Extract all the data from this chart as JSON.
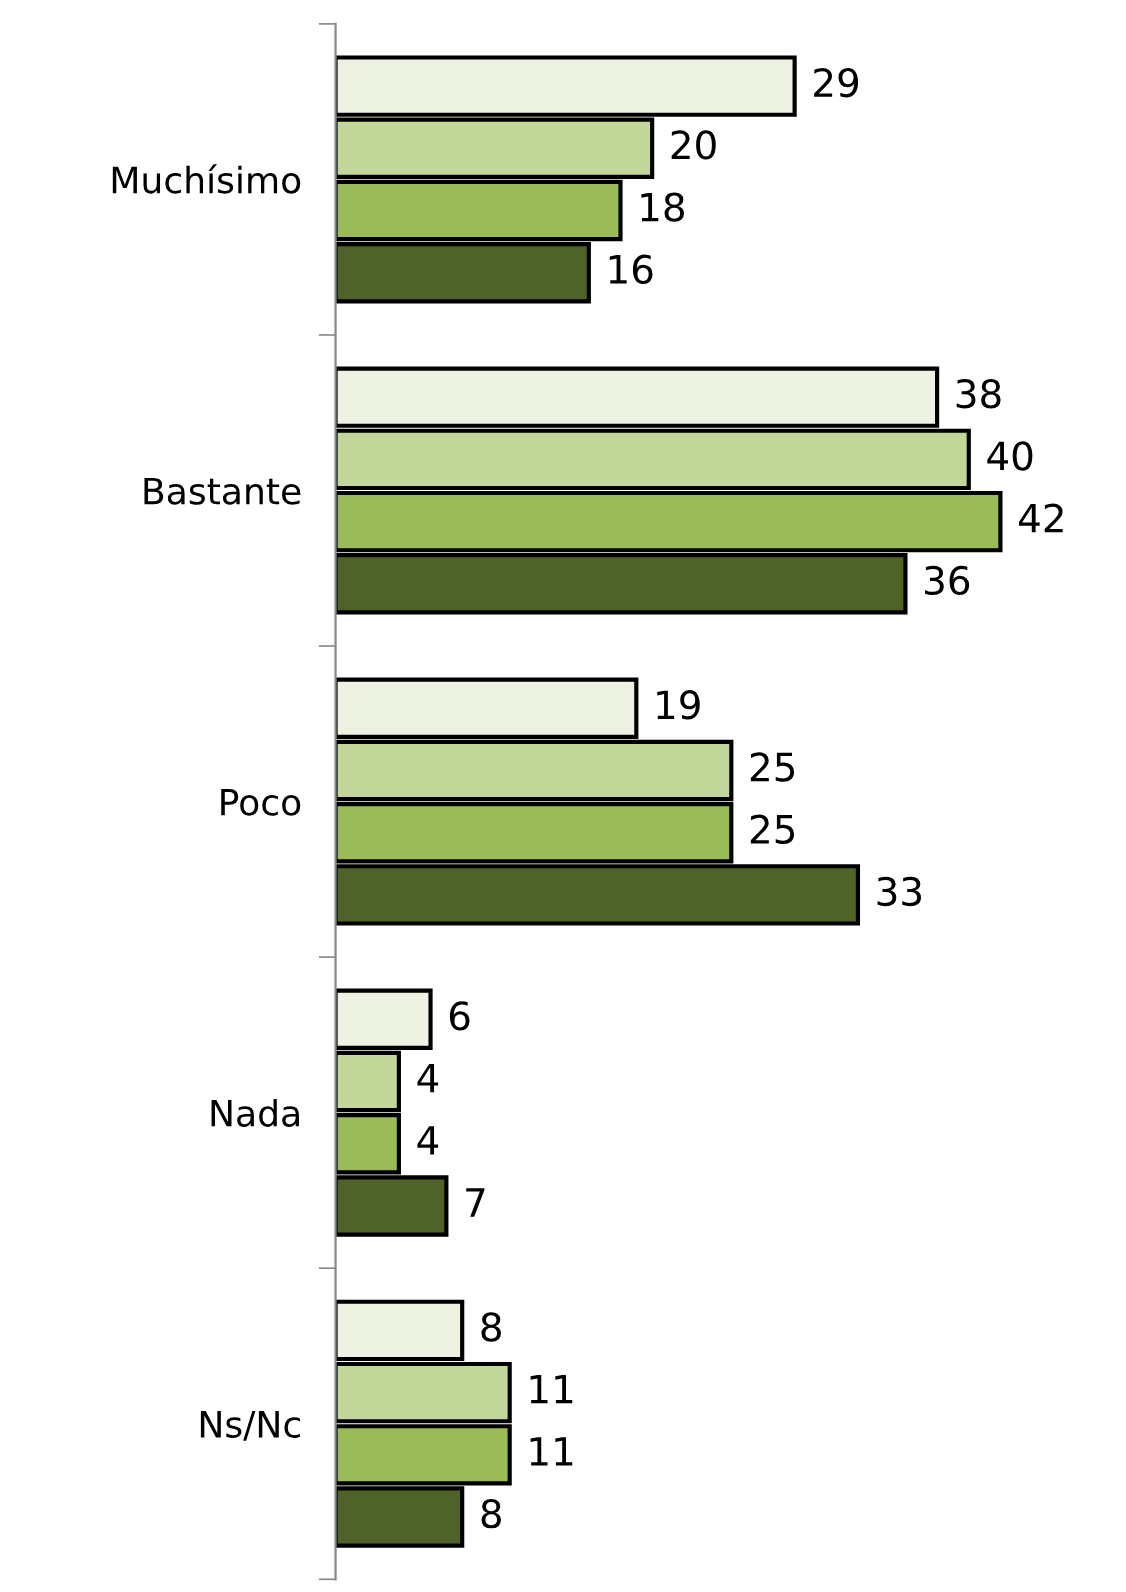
{
  "chart_data": {
    "type": "bar",
    "orientation": "horizontal",
    "categories": [
      "Muchísimo",
      "Bastante",
      "Poco",
      "Nada",
      "Ns/Nc"
    ],
    "series": [
      {
        "color": "#eef2e2",
        "values": [
          29,
          38,
          19,
          6,
          8
        ]
      },
      {
        "color": "#c4d79b",
        "values": [
          20,
          40,
          25,
          4,
          11
        ]
      },
      {
        "color": "#9bbb59",
        "values": [
          18,
          42,
          25,
          4,
          11
        ]
      },
      {
        "color": "#4f6228",
        "values": [
          16,
          36,
          33,
          7,
          8
        ]
      }
    ],
    "tick_labels": "y",
    "data_labels": true,
    "grid": false,
    "legend": false
  }
}
